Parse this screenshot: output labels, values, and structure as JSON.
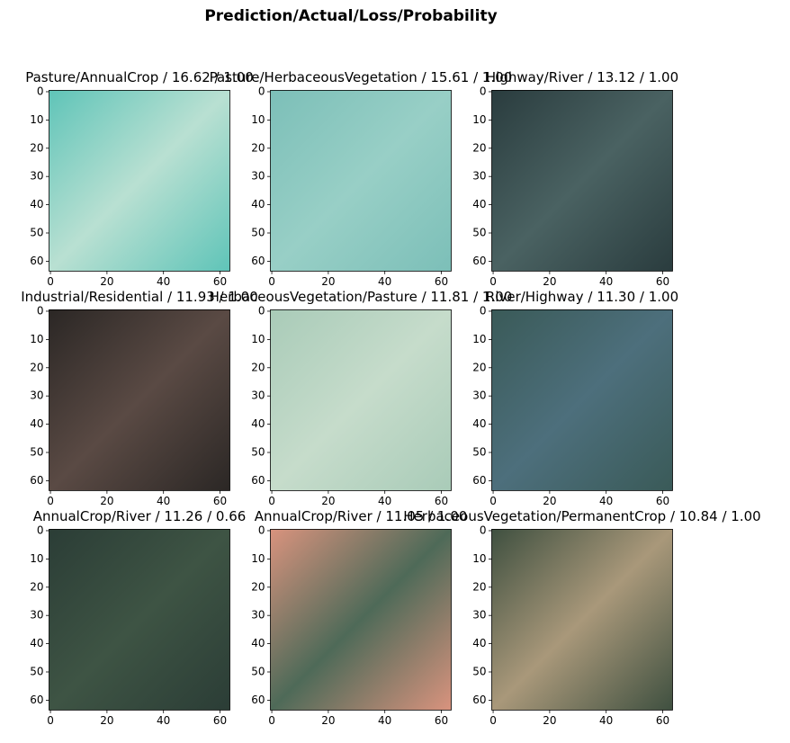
{
  "chart_data": {
    "type": "image",
    "title": "Prediction/Actual/Loss/Probability",
    "xlim": [
      -0.5,
      63.5
    ],
    "ylim": [
      63.5,
      -0.5
    ],
    "xticks": [
      0,
      20,
      40,
      60
    ],
    "yticks": [
      0,
      10,
      20,
      30,
      40,
      50,
      60
    ],
    "panels": [
      {
        "title": "Pasture/AnnualCrop / 16.62 / 1.00",
        "colors": [
          "#5fc4b8",
          "#b9e0d2"
        ]
      },
      {
        "title": "Pasture/HerbaceousVegetation / 15.61 / 1.00",
        "colors": [
          "#7cbfb8",
          "#98cfc6"
        ]
      },
      {
        "title": "Highway/River / 13.12 / 1.00",
        "colors": [
          "#2a3c3e",
          "#4a6262"
        ]
      },
      {
        "title": "Industrial/Residential / 11.93 / 1.00",
        "colors": [
          "#2b2725",
          "#5a4a44"
        ]
      },
      {
        "title": "HerbaceousVegetation/Pasture / 11.81 / 1.00",
        "colors": [
          "#a9cbb8",
          "#c6dccb"
        ]
      },
      {
        "title": "River/Highway / 11.30 / 1.00",
        "colors": [
          "#3a5a58",
          "#4d6f7c"
        ]
      },
      {
        "title": "AnnualCrop/River / 11.26 / 0.66",
        "colors": [
          "#2b3d36",
          "#3e5444"
        ]
      },
      {
        "title": "AnnualCrop/River / 11.05 / 1.00",
        "colors": [
          "#d9937e",
          "#4e6a58"
        ]
      },
      {
        "title": "HerbaceousVegetation/PermanentCrop / 10.84 / 1.00",
        "colors": [
          "#3f5040",
          "#a9987a"
        ]
      }
    ]
  }
}
